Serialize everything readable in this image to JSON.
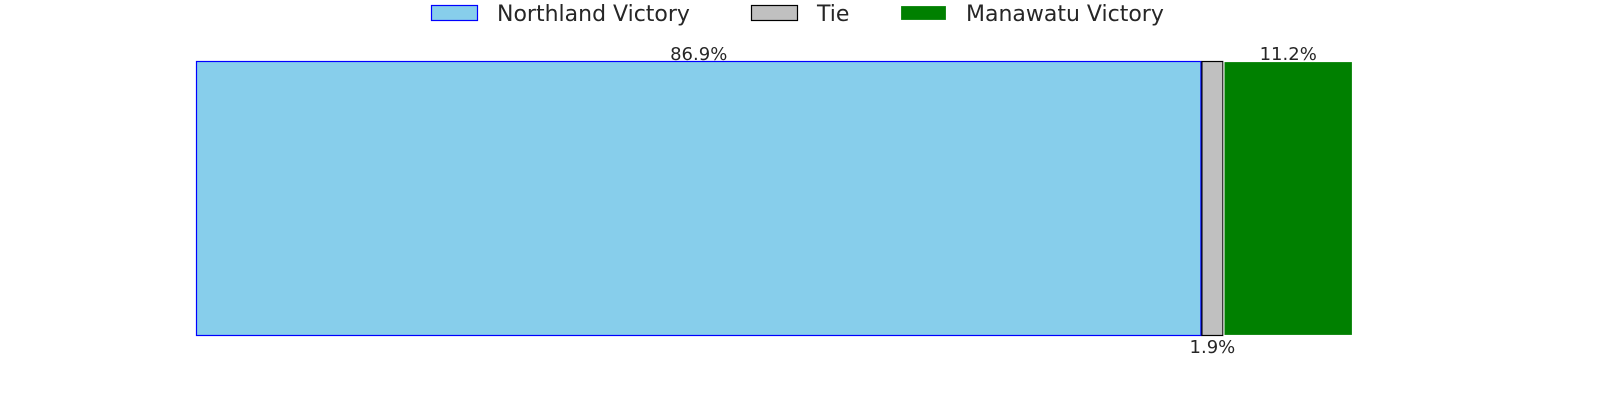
{
  "chart_data": {
    "type": "bar",
    "orientation": "horizontal-stacked",
    "xlim": [
      0,
      100
    ],
    "grid": false,
    "legend_position": "top-center",
    "series": [
      {
        "name": "Northland Victory",
        "value": 86.9,
        "label": "86.9%",
        "color": "#87CEEB",
        "edge": "#0000FF"
      },
      {
        "name": "Tie",
        "value": 1.9,
        "label": "1.9%",
        "color": "#C0C0C0",
        "edge": "#000000"
      },
      {
        "name": "Manawatu Victory",
        "value": 11.2,
        "label": "11.2%",
        "color": "#008000",
        "edge": "#FFFFFF"
      }
    ]
  }
}
